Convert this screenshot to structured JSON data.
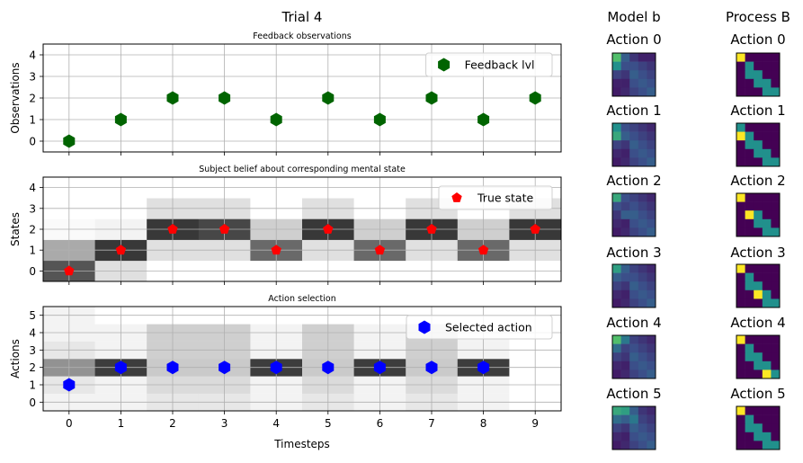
{
  "figure": {
    "title": "Trial 4",
    "model_column_title": "Model b",
    "process_column_title": "Process B"
  },
  "colors": {
    "feedback_marker": "#006400",
    "true_state_marker": "#ff0000",
    "action_marker": "#0000ff",
    "grid": "#b0b0b0",
    "viridis": [
      "#440154",
      "#3b528b",
      "#21908c",
      "#5dc963",
      "#fde725"
    ]
  },
  "chart_data": [
    {
      "id": "feedback",
      "type": "scatter",
      "title": "Feedback observations",
      "xlabel": "",
      "ylabel": "Observations",
      "xlim": [
        -0.5,
        9.5
      ],
      "ylim": [
        -0.5,
        4.5
      ],
      "x_ticks": [
        0,
        1,
        2,
        3,
        4,
        5,
        6,
        7,
        8,
        9
      ],
      "y_ticks": [
        0,
        1,
        2,
        3,
        4
      ],
      "grid": true,
      "legend": "top-right",
      "series": [
        {
          "name": "Feedback lvl",
          "marker": "hexagon",
          "x": [
            0,
            1,
            2,
            3,
            4,
            5,
            6,
            7,
            8,
            9
          ],
          "y": [
            0,
            1,
            2,
            2,
            1,
            2,
            1,
            2,
            1,
            2
          ]
        }
      ]
    },
    {
      "id": "states",
      "type": "heatmap",
      "title": "Subject belief about corresponding mental state",
      "xlabel": "",
      "ylabel": "States",
      "xlim": [
        -0.5,
        9.5
      ],
      "ylim": [
        -0.5,
        4.5
      ],
      "x_ticks": [
        0,
        1,
        2,
        3,
        4,
        5,
        6,
        7,
        8,
        9
      ],
      "y_ticks": [
        0,
        1,
        2,
        3,
        4
      ],
      "grid": true,
      "legend": "top-right",
      "heatmap": [
        [
          0.7,
          0.13,
          0.0,
          0.0,
          0.0,
          0.0,
          0.0,
          0.0,
          0.0,
          0.0
        ],
        [
          0.35,
          0.82,
          0.13,
          0.13,
          0.62,
          0.13,
          0.62,
          0.13,
          0.62,
          0.13
        ],
        [
          0.02,
          0.05,
          0.82,
          0.76,
          0.2,
          0.82,
          0.2,
          0.82,
          0.2,
          0.82
        ],
        [
          0.0,
          0.0,
          0.13,
          0.13,
          0.0,
          0.13,
          0.0,
          0.13,
          0.0,
          0.13
        ],
        [
          0.0,
          0.0,
          0.0,
          0.0,
          0.0,
          0.0,
          0.0,
          0.0,
          0.0,
          0.0
        ]
      ],
      "series": [
        {
          "name": "True state",
          "marker": "pentagon",
          "x": [
            0,
            1,
            2,
            3,
            4,
            5,
            6,
            7,
            8,
            9
          ],
          "y": [
            0,
            1,
            2,
            2,
            1,
            2,
            1,
            2,
            1,
            2
          ]
        }
      ]
    },
    {
      "id": "actions",
      "type": "heatmap",
      "title": "Action selection",
      "xlabel": "Timesteps",
      "ylabel": "Actions",
      "xlim": [
        -0.5,
        9.5
      ],
      "ylim": [
        -0.5,
        5.5
      ],
      "x_ticks": [
        0,
        1,
        2,
        3,
        4,
        5,
        6,
        7,
        8,
        9
      ],
      "y_ticks": [
        0,
        1,
        2,
        3,
        4,
        5
      ],
      "grid": true,
      "legend": "top-right",
      "heatmap": [
        [
          0.05,
          0.05,
          0.1,
          0.1,
          0.05,
          0.1,
          0.05,
          0.1,
          0.05,
          0.0
        ],
        [
          0.1,
          0.05,
          0.15,
          0.15,
          0.05,
          0.15,
          0.05,
          0.15,
          0.05,
          0.0
        ],
        [
          0.45,
          0.8,
          0.22,
          0.22,
          0.8,
          0.22,
          0.8,
          0.22,
          0.8,
          0.0
        ],
        [
          0.1,
          0.05,
          0.2,
          0.2,
          0.05,
          0.2,
          0.05,
          0.2,
          0.05,
          0.0
        ],
        [
          0.05,
          0.05,
          0.2,
          0.2,
          0.05,
          0.2,
          0.05,
          0.2,
          0.05,
          0.0
        ],
        [
          0.05,
          0.0,
          0.0,
          0.0,
          0.0,
          0.0,
          0.0,
          0.0,
          0.0,
          0.0
        ]
      ],
      "series": [
        {
          "name": "Selected action",
          "marker": "hexagon",
          "x": [
            0,
            1,
            2,
            3,
            4,
            5,
            6,
            7,
            8
          ],
          "y": [
            1,
            2,
            2,
            2,
            2,
            2,
            2,
            2,
            2
          ]
        }
      ]
    },
    {
      "id": "matrices",
      "type": "heatmap",
      "actions": [
        {
          "label": "Action 0",
          "model": [
            [
              0.35,
              0.15,
              0.08,
              0.05,
              0.05
            ],
            [
              0.25,
              0.12,
              0.12,
              0.1,
              0.08
            ],
            [
              0.1,
              0.08,
              0.15,
              0.12,
              0.1
            ],
            [
              0.05,
              0.05,
              0.12,
              0.14,
              0.12
            ],
            [
              0.04,
              0.06,
              0.1,
              0.12,
              0.15
            ]
          ],
          "process": [
            [
              1,
              0,
              0,
              0,
              0
            ],
            [
              0,
              0.5,
              0,
              0,
              0
            ],
            [
              0,
              0.5,
              0.5,
              0,
              0
            ],
            [
              0,
              0,
              0.5,
              0.5,
              0
            ],
            [
              0,
              0,
              0,
              0.5,
              0.5
            ]
          ]
        },
        {
          "label": "Action 1",
          "model": [
            [
              0.25,
              0.12,
              0.1,
              0.08,
              0.06
            ],
            [
              0.3,
              0.15,
              0.12,
              0.1,
              0.08
            ],
            [
              0.1,
              0.08,
              0.15,
              0.12,
              0.1
            ],
            [
              0.06,
              0.05,
              0.12,
              0.14,
              0.12
            ],
            [
              0.04,
              0.06,
              0.1,
              0.12,
              0.15
            ]
          ],
          "process": [
            [
              0.5,
              0,
              0,
              0,
              0
            ],
            [
              1,
              0.5,
              0,
              0,
              0
            ],
            [
              0,
              0.5,
              0.5,
              0,
              0
            ],
            [
              0,
              0,
              0.5,
              0.5,
              0
            ],
            [
              0,
              0,
              0,
              0.5,
              0.5
            ]
          ]
        },
        {
          "label": "Action 2",
          "model": [
            [
              0.3,
              0.12,
              0.1,
              0.08,
              0.06
            ],
            [
              0.12,
              0.1,
              0.12,
              0.1,
              0.08
            ],
            [
              0.08,
              0.15,
              0.15,
              0.12,
              0.1
            ],
            [
              0.06,
              0.05,
              0.12,
              0.14,
              0.12
            ],
            [
              0.04,
              0.06,
              0.1,
              0.12,
              0.15
            ]
          ],
          "process": [
            [
              1,
              0,
              0,
              0,
              0
            ],
            [
              0,
              0,
              0,
              0,
              0
            ],
            [
              0,
              1,
              0.5,
              0,
              0
            ],
            [
              0,
              0,
              0.5,
              0.5,
              0
            ],
            [
              0,
              0,
              0,
              0.5,
              0.5
            ]
          ]
        },
        {
          "label": "Action 3",
          "model": [
            [
              0.28,
              0.15,
              0.1,
              0.08,
              0.06
            ],
            [
              0.15,
              0.12,
              0.12,
              0.1,
              0.08
            ],
            [
              0.1,
              0.08,
              0.15,
              0.12,
              0.1
            ],
            [
              0.06,
              0.05,
              0.12,
              0.14,
              0.12
            ],
            [
              0.04,
              0.06,
              0.1,
              0.12,
              0.15
            ]
          ],
          "process": [
            [
              1,
              0,
              0,
              0,
              0
            ],
            [
              0,
              0.5,
              0,
              0,
              0
            ],
            [
              0,
              0.5,
              0.5,
              0,
              0
            ],
            [
              0,
              0,
              1,
              0.5,
              0
            ],
            [
              0,
              0,
              0,
              0.5,
              0.5
            ]
          ]
        },
        {
          "label": "Action 4",
          "model": [
            [
              0.35,
              0.2,
              0.1,
              0.08,
              0.06
            ],
            [
              0.18,
              0.1,
              0.12,
              0.1,
              0.08
            ],
            [
              0.1,
              0.08,
              0.15,
              0.12,
              0.1
            ],
            [
              0.06,
              0.05,
              0.12,
              0.14,
              0.12
            ],
            [
              0.04,
              0.06,
              0.1,
              0.12,
              0.15
            ]
          ],
          "process": [
            [
              1,
              0,
              0,
              0,
              0
            ],
            [
              0,
              0.5,
              0,
              0,
              0
            ],
            [
              0,
              0.5,
              0.5,
              0,
              0
            ],
            [
              0,
              0,
              0.5,
              0.5,
              0
            ],
            [
              0,
              0,
              0,
              1,
              0.5
            ]
          ]
        },
        {
          "label": "Action 5",
          "model": [
            [
              0.3,
              0.28,
              0.15,
              0.08,
              0.06
            ],
            [
              0.18,
              0.15,
              0.2,
              0.1,
              0.08
            ],
            [
              0.1,
              0.08,
              0.15,
              0.12,
              0.1
            ],
            [
              0.06,
              0.05,
              0.12,
              0.14,
              0.12
            ],
            [
              0.04,
              0.06,
              0.1,
              0.12,
              0.15
            ]
          ],
          "process": [
            [
              1,
              0,
              0,
              0,
              0
            ],
            [
              0,
              0.5,
              0,
              0,
              0
            ],
            [
              0,
              0.5,
              0.5,
              0,
              0
            ],
            [
              0,
              0,
              0.5,
              0.5,
              0
            ],
            [
              0,
              0,
              0,
              0.5,
              0.5
            ]
          ]
        }
      ]
    }
  ]
}
